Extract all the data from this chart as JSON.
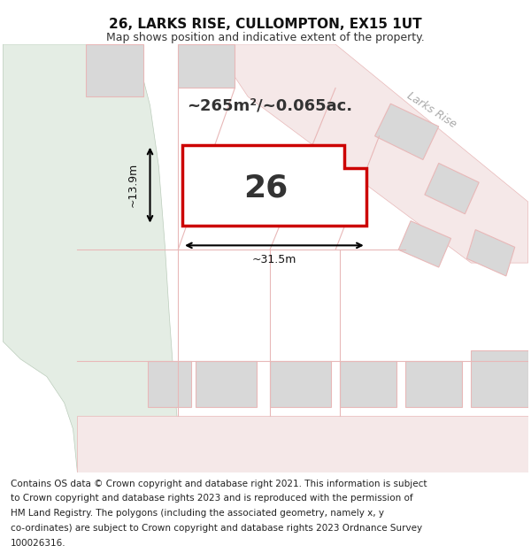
{
  "title": "26, LARKS RISE, CULLOMPTON, EX15 1UT",
  "subtitle": "Map shows position and indicative extent of the property.",
  "area_text": "~265m²/~0.065ac.",
  "label_26": "26",
  "dim_width": "~31.5m",
  "dim_height": "~13.9m",
  "larks_rise_label": "Larks Rise",
  "footer_lines": [
    "Contains OS data © Crown copyright and database right 2021. This information is subject",
    "to Crown copyright and database rights 2023 and is reproduced with the permission of",
    "HM Land Registry. The polygons (including the associated geometry, namely x, y",
    "co-ordinates) are subject to Crown copyright and database rights 2023 Ordnance Survey",
    "100026316."
  ],
  "bg_color": "#ffffff",
  "map_bg": "#f0f0f0",
  "green_area_color": "#e4ede4",
  "plot_outline": "#cc0000",
  "road_color": "#e8b8b8",
  "road_fill": "#f5e8e8",
  "building_color": "#d8d8d8",
  "title_fontsize": 11,
  "subtitle_fontsize": 9,
  "footer_fontsize": 7.5
}
